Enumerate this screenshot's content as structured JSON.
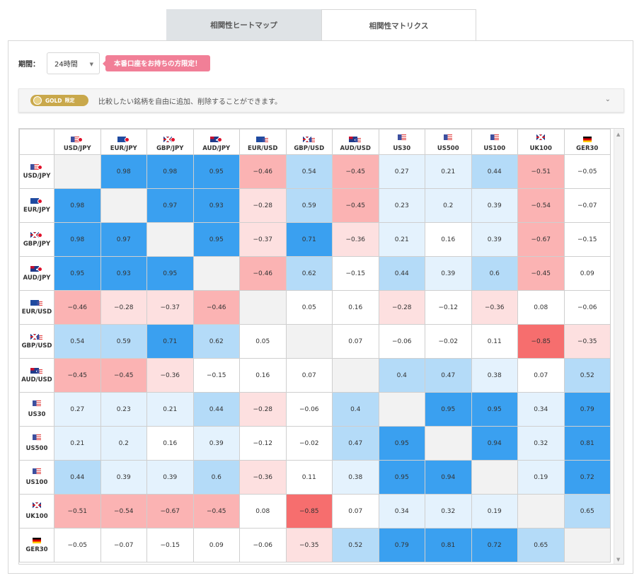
{
  "tabs": [
    {
      "label": "相関性ヒートマップ",
      "active": false
    },
    {
      "label": "相関性マトリクス",
      "active": true
    }
  ],
  "period": {
    "label": "期間：",
    "selected": "24時間",
    "badge": "本番口座をお持ちの方限定！"
  },
  "gold_bar": {
    "badge": "GOLD",
    "badge_sub": "限定",
    "text": "比較したい銘柄を自由に追加、削除することができます。"
  },
  "colors": {
    "pos_strong": "#3aa0f0",
    "pos_mid": "#b4dbf8",
    "pos_light": "#e4f2fd",
    "neg_strong": "#f66e6e",
    "neg_mid": "#fbb3b3",
    "neg_light": "#fde0e0",
    "diag": "#f2f2f2"
  },
  "matrix": {
    "symbols": [
      {
        "name": "USD/JPY",
        "flags": [
          "us",
          "jp"
        ],
        "futures": false
      },
      {
        "name": "EUR/JPY",
        "flags": [
          "eu",
          "jp"
        ],
        "futures": false
      },
      {
        "name": "GBP/JPY",
        "flags": [
          "gb",
          "jp"
        ],
        "futures": false
      },
      {
        "name": "AUD/JPY",
        "flags": [
          "au",
          "jp"
        ],
        "futures": false
      },
      {
        "name": "EUR/USD",
        "flags": [
          "eu",
          "us"
        ],
        "futures": false
      },
      {
        "name": "GBP/USD",
        "flags": [
          "gb",
          "us"
        ],
        "futures": false
      },
      {
        "name": "AUD/USD",
        "flags": [
          "au",
          "us"
        ],
        "futures": false
      },
      {
        "name": "US30",
        "flags": [
          "us"
        ],
        "futures": true
      },
      {
        "name": "US500",
        "flags": [
          "us"
        ],
        "futures": true
      },
      {
        "name": "US100",
        "flags": [
          "us"
        ],
        "futures": true
      },
      {
        "name": "UK100",
        "flags": [
          "gb"
        ],
        "futures": true
      },
      {
        "name": "GER30",
        "flags": [
          "de"
        ],
        "futures": false
      }
    ],
    "values": [
      [
        null,
        0.98,
        0.98,
        0.95,
        -0.46,
        0.54,
        -0.45,
        0.27,
        0.21,
        0.44,
        -0.51,
        -0.05
      ],
      [
        0.98,
        null,
        0.97,
        0.93,
        -0.28,
        0.59,
        -0.45,
        0.23,
        0.2,
        0.39,
        -0.54,
        -0.07
      ],
      [
        0.98,
        0.97,
        null,
        0.95,
        -0.37,
        0.71,
        -0.36,
        0.21,
        0.16,
        0.39,
        -0.67,
        -0.15
      ],
      [
        0.95,
        0.93,
        0.95,
        null,
        -0.46,
        0.62,
        -0.15,
        0.44,
        0.39,
        0.6,
        -0.45,
        0.09
      ],
      [
        -0.46,
        -0.28,
        -0.37,
        -0.46,
        null,
        0.05,
        0.16,
        -0.28,
        -0.12,
        -0.36,
        0.08,
        -0.06
      ],
      [
        0.54,
        0.59,
        0.71,
        0.62,
        0.05,
        null,
        0.07,
        -0.06,
        -0.02,
        0.11,
        -0.85,
        -0.35
      ],
      [
        -0.45,
        -0.45,
        -0.36,
        -0.15,
        0.16,
        0.07,
        null,
        0.4,
        0.47,
        0.38,
        0.07,
        0.52
      ],
      [
        0.27,
        0.23,
        0.21,
        0.44,
        -0.28,
        -0.06,
        0.4,
        null,
        0.95,
        0.95,
        0.34,
        0.79
      ],
      [
        0.21,
        0.2,
        0.16,
        0.39,
        -0.12,
        -0.02,
        0.47,
        0.95,
        null,
        0.94,
        0.32,
        0.81
      ],
      [
        0.44,
        0.39,
        0.39,
        0.6,
        -0.36,
        0.11,
        0.38,
        0.95,
        0.94,
        null,
        0.19,
        0.72
      ],
      [
        -0.51,
        -0.54,
        -0.67,
        -0.45,
        0.08,
        -0.85,
        0.07,
        0.34,
        0.32,
        0.19,
        null,
        0.65
      ],
      [
        -0.05,
        -0.07,
        -0.15,
        0.09,
        -0.06,
        -0.35,
        0.52,
        0.79,
        0.81,
        0.72,
        0.65,
        null
      ]
    ],
    "display": [
      [
        "",
        "0.98",
        "0.98",
        "0.95",
        "−0.46",
        "0.54",
        "−0.45",
        "0.27",
        "0.21",
        "0.44",
        "−0.51",
        "−0.05"
      ],
      [
        "0.98",
        "",
        "0.97",
        "0.93",
        "−0.28",
        "0.59",
        "−0.45",
        "0.23",
        "0.2",
        "0.39",
        "−0.54",
        "−0.07"
      ],
      [
        "0.98",
        "0.97",
        "",
        "0.95",
        "−0.37",
        "0.71",
        "−0.36",
        "0.21",
        "0.16",
        "0.39",
        "−0.67",
        "−0.15"
      ],
      [
        "0.95",
        "0.93",
        "0.95",
        "",
        "−0.46",
        "0.62",
        "−0.15",
        "0.44",
        "0.39",
        "0.6",
        "−0.45",
        "0.09"
      ],
      [
        "−0.46",
        "−0.28",
        "−0.37",
        "−0.46",
        "",
        "0.05",
        "0.16",
        "−0.28",
        "−0.12",
        "−0.36",
        "0.08",
        "−0.06"
      ],
      [
        "0.54",
        "0.59",
        "0.71",
        "0.62",
        "0.05",
        "",
        "0.07",
        "−0.06",
        "−0.02",
        "0.11",
        "−0.85",
        "−0.35"
      ],
      [
        "−0.45",
        "−0.45",
        "−0.36",
        "−0.15",
        "0.16",
        "0.07",
        "",
        "0.4",
        "0.47",
        "0.38",
        "0.07",
        "0.52"
      ],
      [
        "0.27",
        "0.23",
        "0.21",
        "0.44",
        "−0.28",
        "−0.06",
        "0.4",
        "",
        "0.95",
        "0.95",
        "0.34",
        "0.79"
      ],
      [
        "0.21",
        "0.2",
        "0.16",
        "0.39",
        "−0.12",
        "−0.02",
        "0.47",
        "0.95",
        "",
        "0.94",
        "0.32",
        "0.81"
      ],
      [
        "0.44",
        "0.39",
        "0.39",
        "0.6",
        "−0.36",
        "0.11",
        "0.38",
        "0.95",
        "0.94",
        "",
        "0.19",
        "0.72"
      ],
      [
        "−0.51",
        "−0.54",
        "−0.67",
        "−0.45",
        "0.08",
        "−0.85",
        "0.07",
        "0.34",
        "0.32",
        "0.19",
        "",
        "0.65"
      ],
      [
        "−0.05",
        "−0.07",
        "−0.15",
        "0.09",
        "−0.06",
        "−0.35",
        "0.52",
        "0.79",
        "0.81",
        "0.72",
        "0.65",
        ""
      ]
    ]
  }
}
